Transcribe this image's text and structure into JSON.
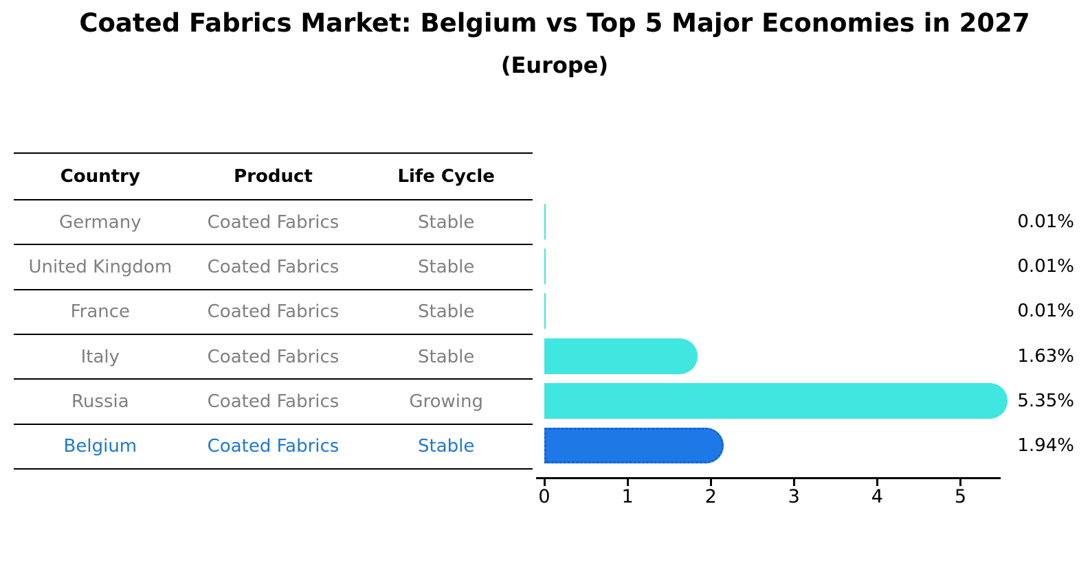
{
  "page": {
    "background": "#ffffff"
  },
  "chart_data": {
    "type": "bar",
    "orientation": "horizontal",
    "title": "Coated Fabrics Market: Belgium vs Top 5 Major Economies in 2027",
    "subtitle": "(Europe)",
    "columns": [
      "Country",
      "Product",
      "Life Cycle"
    ],
    "rows": [
      {
        "country": "Germany",
        "product": "Coated Fabrics",
        "life_cycle": "Stable",
        "value": 0.01,
        "value_label": "0.01%",
        "highlight": false
      },
      {
        "country": "United Kingdom",
        "product": "Coated Fabrics",
        "life_cycle": "Stable",
        "value": 0.01,
        "value_label": "0.01%",
        "highlight": false
      },
      {
        "country": "France",
        "product": "Coated Fabrics",
        "life_cycle": "Stable",
        "value": 0.01,
        "value_label": "0.01%",
        "highlight": false
      },
      {
        "country": "Italy",
        "product": "Coated Fabrics",
        "life_cycle": "Stable",
        "value": 1.63,
        "value_label": "1.63%",
        "highlight": false
      },
      {
        "country": "Russia",
        "product": "Coated Fabrics",
        "life_cycle": "Growing",
        "value": 5.35,
        "value_label": "5.35%",
        "highlight": false
      },
      {
        "country": "Belgium",
        "product": "Coated Fabrics",
        "life_cycle": "Stable",
        "value": 1.94,
        "value_label": "1.94%",
        "highlight": true
      }
    ],
    "x_ticks": [
      "0",
      "1",
      "2",
      "3",
      "4",
      "5"
    ],
    "x_max": 5.5,
    "grid": false,
    "legend": "none",
    "xlabel": "",
    "ylabel": "",
    "colors": {
      "bar": "#40E6E0",
      "highlight_bar": "#1E79E6",
      "highlight_border": "#0E62D9",
      "highlight_text": "#1E78D2",
      "row_text": "#808080",
      "header_text": "#000000",
      "value_text": "#000000",
      "axis": "#000000"
    }
  }
}
